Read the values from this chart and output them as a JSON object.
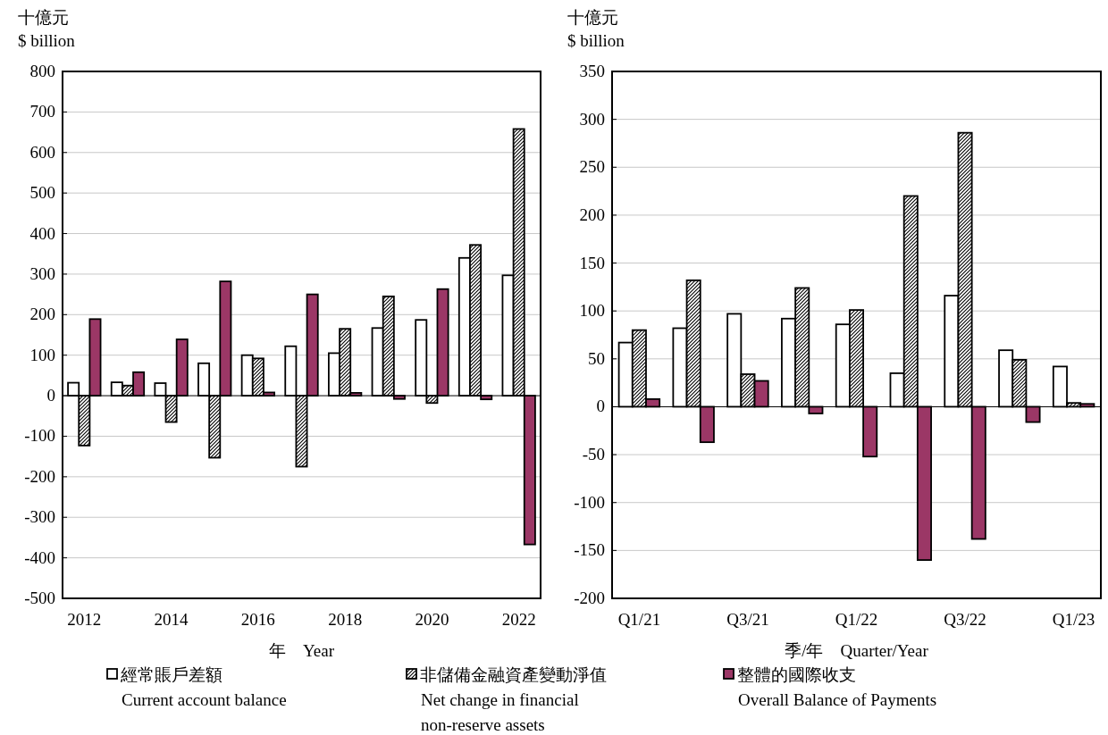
{
  "chart_data": [
    {
      "type": "bar",
      "ylabel": "十億元\n$ billion",
      "xlabel": "年　Year",
      "categories": [
        "2012",
        null,
        "2014",
        null,
        "2016",
        null,
        "2018",
        null,
        "2020",
        null,
        "2022"
      ],
      "ylim": [
        -500,
        800
      ],
      "yticks": [
        -500,
        -400,
        -300,
        -200,
        -100,
        0,
        100,
        200,
        300,
        400,
        500,
        600,
        700,
        800
      ],
      "grid": "y",
      "legend": "bottom",
      "series": [
        {
          "name": "經常賬戶差額\nCurrent account balance",
          "color": "#ffffff",
          "values": [
            32,
            33,
            31,
            80,
            100,
            122,
            105,
            167,
            187,
            340,
            297
          ]
        },
        {
          "name": "非儲備金融資產變動淨值\nNet change in financial\nnon-reserve assets",
          "color": "#000000",
          "values": [
            -123,
            25,
            -65,
            -153,
            92,
            -175,
            165,
            245,
            -18,
            372,
            658
          ]
        },
        {
          "name": "整體的國際收支\nOverall Balance of Payments",
          "color": "#9b3766",
          "values": [
            189,
            58,
            139,
            282,
            8,
            250,
            7,
            -8,
            263,
            -9,
            -367
          ]
        }
      ]
    },
    {
      "type": "bar",
      "ylabel": "十億元\n$ billion",
      "xlabel": "季/年　Quarter/Year",
      "categories": [
        "Q1/21",
        null,
        "Q3/21",
        null,
        "Q1/22",
        null,
        "Q3/22",
        null,
        "Q1/23"
      ],
      "ylim": [
        -200,
        350
      ],
      "yticks": [
        -200,
        -150,
        -100,
        -50,
        0,
        50,
        100,
        150,
        200,
        250,
        300,
        350
      ],
      "grid": "y",
      "series": [
        {
          "color": "#ffffff",
          "values": [
            67,
            82,
            97,
            92,
            86,
            35,
            116,
            59,
            42
          ]
        },
        {
          "color": "#000000",
          "values": [
            80,
            132,
            34,
            124,
            101,
            220,
            286,
            49,
            4
          ]
        },
        {
          "color": "#9b3766",
          "values": [
            8,
            -37,
            27,
            -7,
            -52,
            -160,
            -138,
            -16,
            3
          ]
        }
      ]
    }
  ]
}
